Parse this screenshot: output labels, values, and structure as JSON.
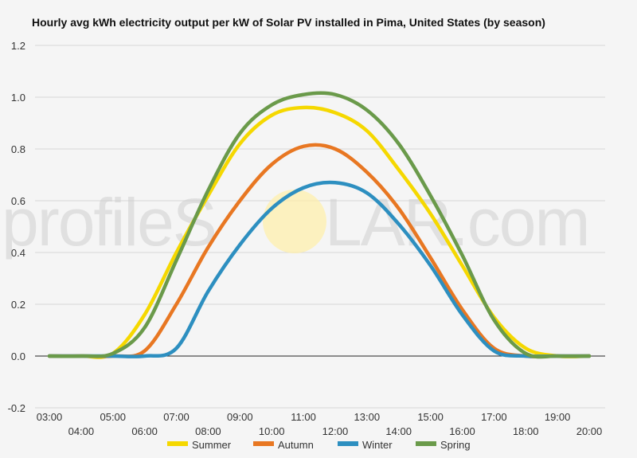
{
  "chart_data": {
    "type": "line",
    "title": "Hourly avg kWh electricity output per kW of Solar PV installed in Pima, United States (by season)",
    "xlabel": "",
    "ylabel": "",
    "ylim": [
      -0.2,
      1.2
    ],
    "yticks": [
      -0.2,
      0.0,
      0.2,
      0.4,
      0.6,
      0.8,
      1.0,
      1.2
    ],
    "ytick_labels": [
      "-0.2",
      "0.0",
      "0.2",
      "0.4",
      "0.6",
      "0.8",
      "1.0",
      "1.2"
    ],
    "x": [
      "03:00",
      "04:00",
      "05:00",
      "06:00",
      "07:00",
      "08:00",
      "09:00",
      "10:00",
      "11:00",
      "12:00",
      "13:00",
      "14:00",
      "15:00",
      "16:00",
      "17:00",
      "18:00",
      "19:00",
      "20:00"
    ],
    "grid": true,
    "legend_position": "bottom",
    "series": [
      {
        "name": "Summer",
        "color": "#f5d800",
        "values": [
          0.0,
          0.0,
          0.01,
          0.16,
          0.4,
          0.62,
          0.82,
          0.93,
          0.96,
          0.94,
          0.87,
          0.72,
          0.55,
          0.35,
          0.15,
          0.03,
          0.0,
          0.0
        ]
      },
      {
        "name": "Autumn",
        "color": "#e87722",
        "values": [
          0.0,
          0.0,
          0.0,
          0.02,
          0.2,
          0.42,
          0.6,
          0.74,
          0.81,
          0.8,
          0.71,
          0.57,
          0.38,
          0.18,
          0.03,
          0.0,
          0.0,
          0.0
        ]
      },
      {
        "name": "Winter",
        "color": "#2d8fc0",
        "values": [
          0.0,
          0.0,
          0.0,
          0.0,
          0.03,
          0.25,
          0.43,
          0.57,
          0.65,
          0.67,
          0.63,
          0.51,
          0.35,
          0.16,
          0.02,
          0.0,
          0.0,
          0.0
        ]
      },
      {
        "name": "Spring",
        "color": "#6a9a4a",
        "values": [
          0.0,
          0.0,
          0.01,
          0.11,
          0.37,
          0.64,
          0.86,
          0.97,
          1.01,
          1.01,
          0.95,
          0.82,
          0.62,
          0.39,
          0.14,
          0.01,
          0.0,
          0.0
        ]
      }
    ]
  },
  "watermark": {
    "text_left": "profileS",
    "text_right": "LAR.com",
    "sun_color": "#fff0a8"
  }
}
